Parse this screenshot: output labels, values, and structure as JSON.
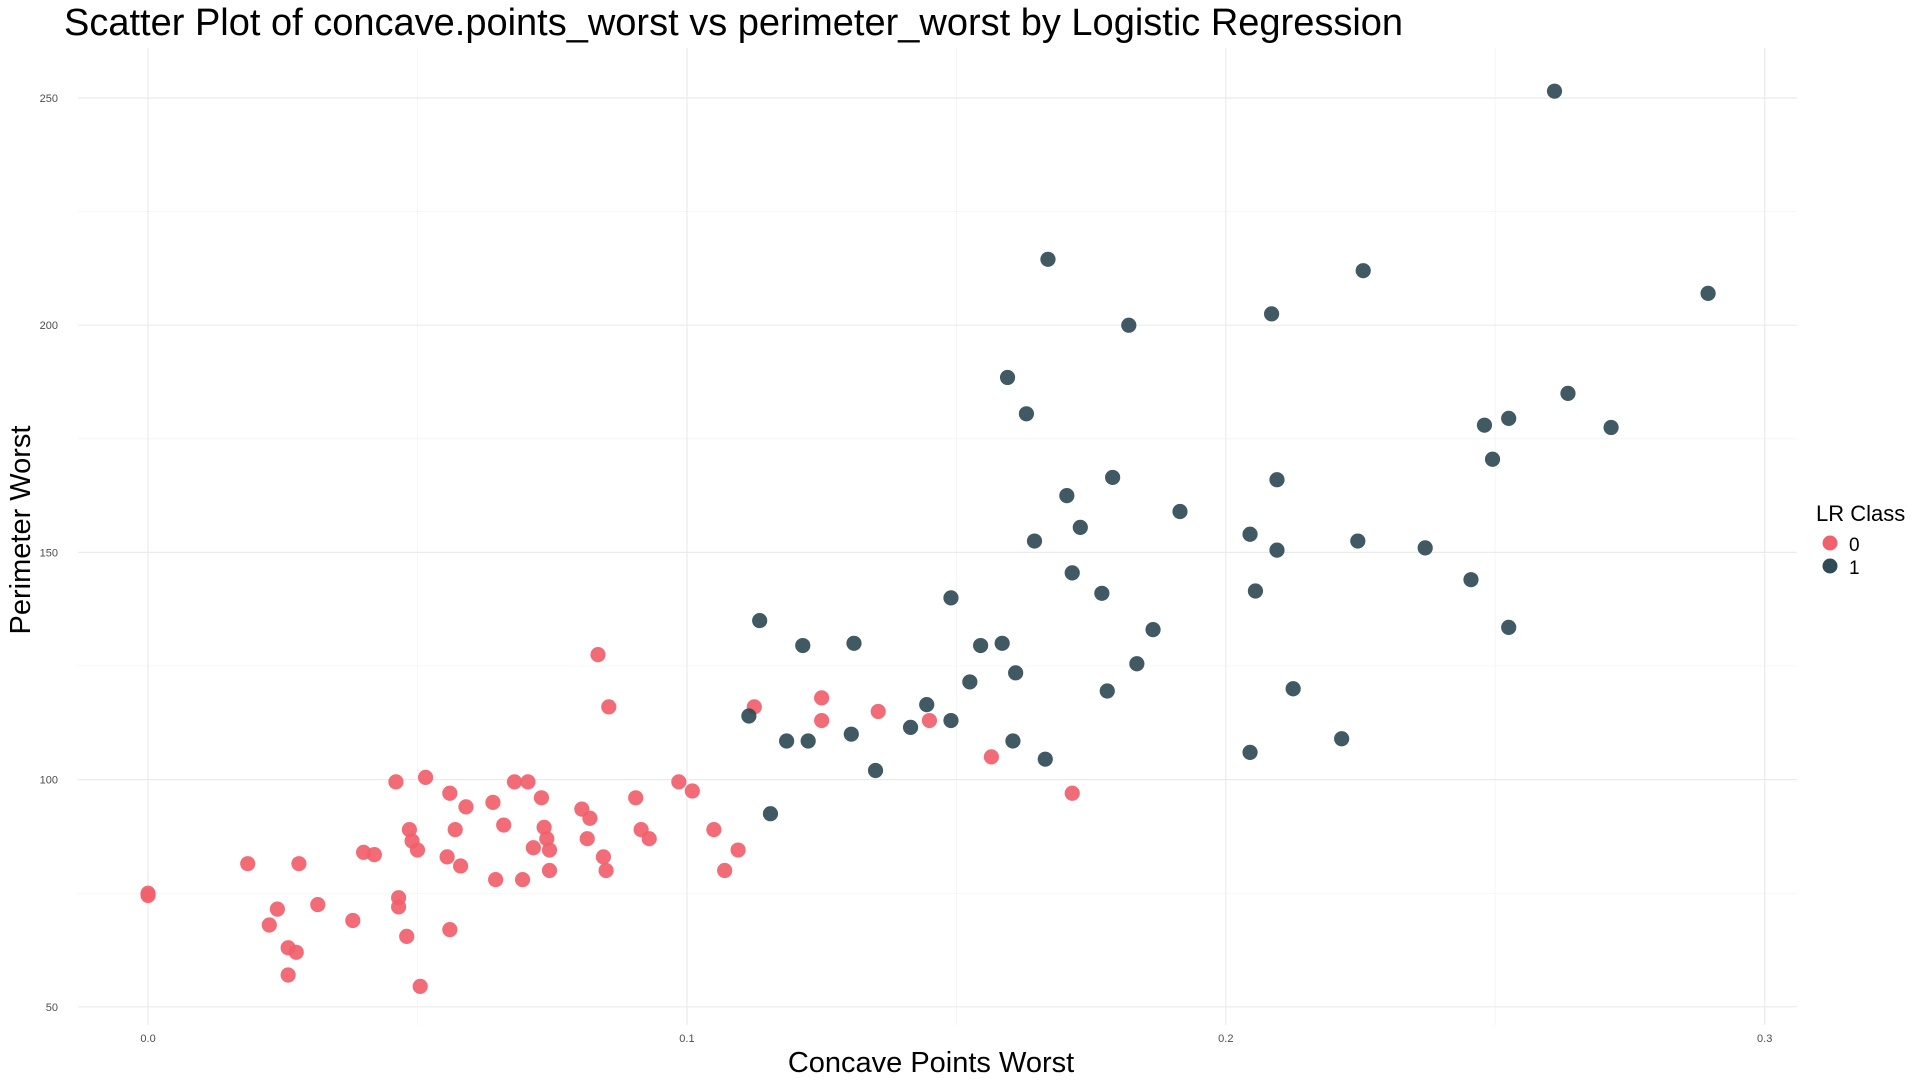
{
  "chart_data": {
    "type": "scatter",
    "title": "Scatter Plot of concave.points_worst vs perimeter_worst by Logistic Regression",
    "xlabel": "Concave Points Worst",
    "ylabel": "Perimeter Worst",
    "xlim": [
      -0.013,
      0.306
    ],
    "ylim": [
      46,
      261
    ],
    "x_ticks": [
      0.0,
      0.1,
      0.2,
      0.3
    ],
    "x_tick_labels": [
      "0.0",
      "0.1",
      "0.2",
      "0.3"
    ],
    "y_ticks": [
      50,
      100,
      150,
      200,
      250
    ],
    "y_tick_labels": [
      "50",
      "100",
      "150",
      "200",
      "250"
    ],
    "x_minor_ticks": [
      0.05,
      0.15,
      0.25
    ],
    "y_minor_ticks": [
      75,
      125,
      175,
      225
    ],
    "grid": true,
    "legend": {
      "title": "LR Class",
      "position": "right",
      "entries": [
        {
          "label": "0",
          "color": "#F1606C"
        },
        {
          "label": "1",
          "color": "#304B55"
        }
      ]
    },
    "series": [
      {
        "name": "0",
        "color": "#F1606C",
        "points": [
          [
            0.0,
            75
          ],
          [
            0.0,
            74.5
          ],
          [
            0.0185,
            81.5
          ],
          [
            0.0225,
            68
          ],
          [
            0.024,
            71.5
          ],
          [
            0.026,
            63
          ],
          [
            0.026,
            57
          ],
          [
            0.0275,
            62
          ],
          [
            0.028,
            81.5
          ],
          [
            0.0315,
            72.5
          ],
          [
            0.038,
            69
          ],
          [
            0.04,
            84
          ],
          [
            0.042,
            83.5
          ],
          [
            0.046,
            99.5
          ],
          [
            0.0465,
            74
          ],
          [
            0.0465,
            72
          ],
          [
            0.048,
            65.5
          ],
          [
            0.0485,
            89
          ],
          [
            0.049,
            86.5
          ],
          [
            0.05,
            84.5
          ],
          [
            0.0505,
            54.5
          ],
          [
            0.0515,
            100.5
          ],
          [
            0.0555,
            83
          ],
          [
            0.056,
            97
          ],
          [
            0.056,
            67
          ],
          [
            0.057,
            89
          ],
          [
            0.058,
            81
          ],
          [
            0.059,
            94
          ],
          [
            0.064,
            95
          ],
          [
            0.0645,
            78
          ],
          [
            0.066,
            90
          ],
          [
            0.068,
            99.5
          ],
          [
            0.0695,
            78
          ],
          [
            0.0705,
            99.5
          ],
          [
            0.0715,
            85
          ],
          [
            0.073,
            96
          ],
          [
            0.0735,
            89.5
          ],
          [
            0.074,
            87
          ],
          [
            0.0745,
            84.5
          ],
          [
            0.0745,
            80
          ],
          [
            0.0805,
            93.5
          ],
          [
            0.0815,
            87
          ],
          [
            0.082,
            91.5
          ],
          [
            0.0835,
            127.5
          ],
          [
            0.0845,
            83
          ],
          [
            0.085,
            80
          ],
          [
            0.0855,
            116
          ],
          [
            0.0905,
            96
          ],
          [
            0.0915,
            89
          ],
          [
            0.093,
            87
          ],
          [
            0.0985,
            99.5
          ],
          [
            0.101,
            97.5
          ],
          [
            0.105,
            89
          ],
          [
            0.107,
            80
          ],
          [
            0.1095,
            84.5
          ],
          [
            0.1125,
            116
          ],
          [
            0.125,
            118
          ],
          [
            0.125,
            113
          ],
          [
            0.1355,
            115
          ],
          [
            0.145,
            113
          ],
          [
            0.1565,
            105
          ],
          [
            0.1715,
            97
          ]
        ]
      },
      {
        "name": "1",
        "color": "#304B55",
        "points": [
          [
            0.1115,
            114
          ],
          [
            0.1135,
            135
          ],
          [
            0.1155,
            92.5
          ],
          [
            0.1185,
            108.5
          ],
          [
            0.1215,
            129.5
          ],
          [
            0.1225,
            108.5
          ],
          [
            0.1305,
            110
          ],
          [
            0.131,
            130
          ],
          [
            0.135,
            102
          ],
          [
            0.1415,
            111.5
          ],
          [
            0.1445,
            116.5
          ],
          [
            0.149,
            140
          ],
          [
            0.149,
            113
          ],
          [
            0.1525,
            121.5
          ],
          [
            0.1545,
            129.5
          ],
          [
            0.1585,
            130
          ],
          [
            0.1595,
            188.5
          ],
          [
            0.1605,
            108.5
          ],
          [
            0.161,
            123.5
          ],
          [
            0.163,
            180.5
          ],
          [
            0.1645,
            152.5
          ],
          [
            0.1665,
            104.5
          ],
          [
            0.167,
            214.5
          ],
          [
            0.1705,
            162.5
          ],
          [
            0.1715,
            145.5
          ],
          [
            0.173,
            155.5
          ],
          [
            0.177,
            141
          ],
          [
            0.178,
            119.5
          ],
          [
            0.179,
            166.5
          ],
          [
            0.182,
            200
          ],
          [
            0.1835,
            125.5
          ],
          [
            0.1865,
            133
          ],
          [
            0.1915,
            159
          ],
          [
            0.2045,
            154
          ],
          [
            0.2045,
            106
          ],
          [
            0.2055,
            141.5
          ],
          [
            0.2085,
            202.5
          ],
          [
            0.2095,
            150.5
          ],
          [
            0.2095,
            166
          ],
          [
            0.2125,
            120
          ],
          [
            0.2215,
            109
          ],
          [
            0.2245,
            152.5
          ],
          [
            0.2255,
            212
          ],
          [
            0.237,
            151
          ],
          [
            0.2455,
            144
          ],
          [
            0.248,
            178
          ],
          [
            0.2495,
            170.5
          ],
          [
            0.2525,
            179.5
          ],
          [
            0.2525,
            133.5
          ],
          [
            0.261,
            251.5
          ],
          [
            0.2635,
            185
          ],
          [
            0.2715,
            177.5
          ],
          [
            0.2895,
            207
          ]
        ]
      }
    ]
  }
}
